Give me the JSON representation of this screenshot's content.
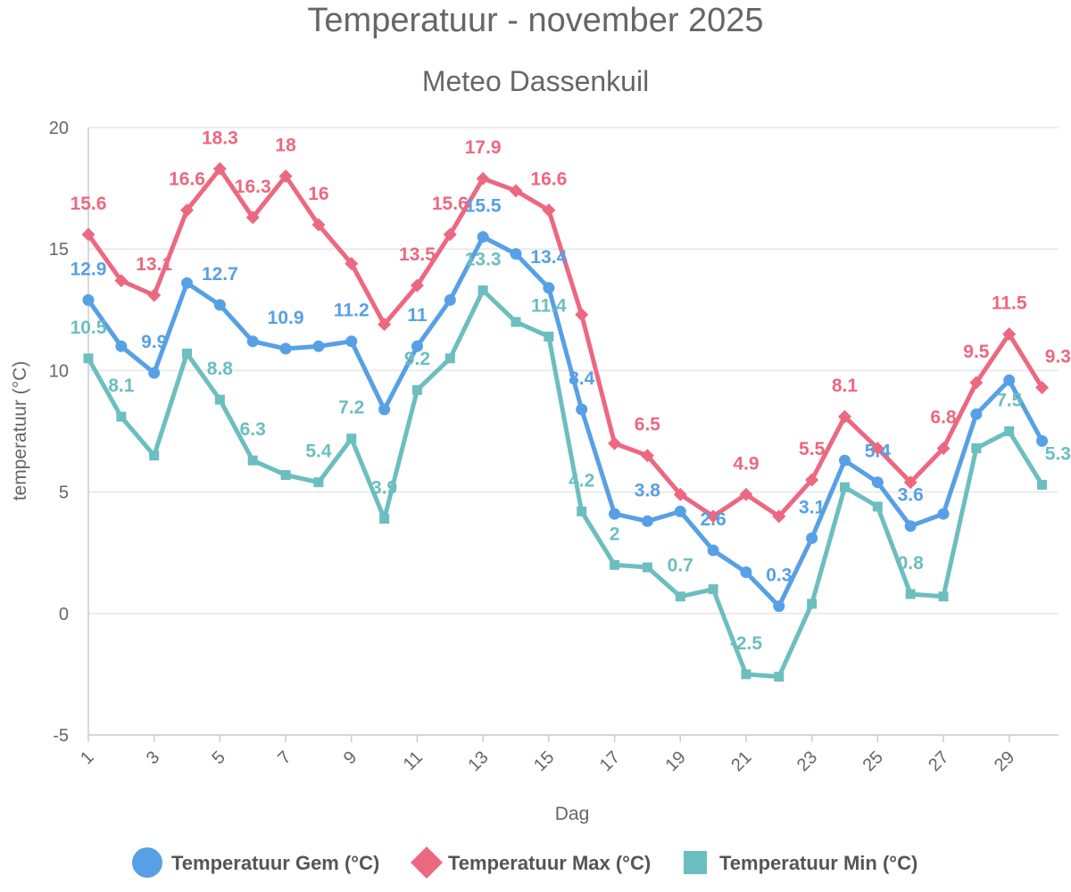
{
  "chart_data": {
    "type": "line",
    "title": "Temperatuur - november 2025",
    "subtitle": "Meteo Dassenkuil",
    "xlabel": "Dag",
    "ylabel": "temperatuur (°C)",
    "ylim": [
      -5,
      20
    ],
    "yticks": [
      -5,
      0,
      5,
      10,
      15,
      20
    ],
    "x": [
      1,
      2,
      3,
      4,
      5,
      6,
      7,
      8,
      9,
      10,
      11,
      12,
      13,
      14,
      15,
      16,
      17,
      18,
      19,
      20,
      21,
      22,
      23,
      24,
      25,
      26,
      27,
      28,
      29,
      30
    ],
    "xticks": [
      1,
      3,
      5,
      7,
      9,
      11,
      13,
      15,
      17,
      19,
      21,
      23,
      25,
      27,
      29
    ],
    "legend_position": "bottom-center",
    "series": [
      {
        "name": "Temperatuur Gem (°C)",
        "color": "#57a0e5",
        "marker": "circle",
        "values": [
          12.9,
          11.0,
          9.9,
          13.6,
          12.7,
          11.2,
          10.9,
          11.0,
          11.2,
          8.4,
          11.0,
          12.9,
          15.5,
          14.8,
          13.4,
          8.4,
          4.1,
          3.8,
          4.2,
          2.6,
          1.7,
          0.3,
          3.1,
          6.3,
          5.4,
          3.6,
          4.1,
          8.2,
          9.6,
          7.1
        ],
        "labels": {
          "1": "12.9",
          "3": "9.9",
          "5": "12.7",
          "7": "10.9",
          "9": "11.2",
          "11": "11",
          "13": "15.5",
          "15": "13.4",
          "16": "8.4",
          "18": "3.8",
          "20": "2.6",
          "22": "0.3",
          "23": "3.1",
          "25": "5.4",
          "26": "3.6"
        }
      },
      {
        "name": "Temperatuur Max (°C)",
        "color": "#ec6880",
        "marker": "diamond",
        "values": [
          15.6,
          13.7,
          13.1,
          16.6,
          18.3,
          16.3,
          18.0,
          16.0,
          14.4,
          11.9,
          13.5,
          15.6,
          17.9,
          17.4,
          16.6,
          12.3,
          7.0,
          6.5,
          4.9,
          4.0,
          4.9,
          4.0,
          5.5,
          8.1,
          6.8,
          5.4,
          6.8,
          9.5,
          11.5,
          9.3
        ],
        "labels": {
          "1": "15.6",
          "3": "13.1",
          "4": "16.6",
          "5": "18.3",
          "6": "16.3",
          "7": "18",
          "8": "16",
          "11": "13.5",
          "12": "15.6",
          "13": "17.9",
          "15": "16.6",
          "18": "6.5",
          "21": "4.9",
          "23": "5.5",
          "24": "8.1",
          "27": "6.8",
          "28": "9.5",
          "29": "11.5",
          "30": "9.3"
        }
      },
      {
        "name": "Temperatuur Min (°C)",
        "color": "#6cbebf",
        "marker": "square",
        "values": [
          10.5,
          8.1,
          6.5,
          10.7,
          8.8,
          6.3,
          5.7,
          5.4,
          7.2,
          3.9,
          9.2,
          10.5,
          13.3,
          12.0,
          11.4,
          4.2,
          2.0,
          1.9,
          0.7,
          1.0,
          -2.5,
          -2.6,
          0.4,
          5.2,
          4.4,
          0.8,
          0.7,
          6.8,
          7.5,
          5.3
        ],
        "labels": {
          "1": "10.5",
          "2": "8.1",
          "5": "8.8",
          "6": "6.3",
          "8": "5.4",
          "9": "7.2",
          "10": "3.9",
          "11": "9.2",
          "13": "13.3",
          "15": "11.4",
          "16": "4.2",
          "17": "2",
          "19": "0.7",
          "21": "-2.5",
          "26": "0.8",
          "29": "7.5",
          "30": "5.3"
        }
      }
    ]
  }
}
